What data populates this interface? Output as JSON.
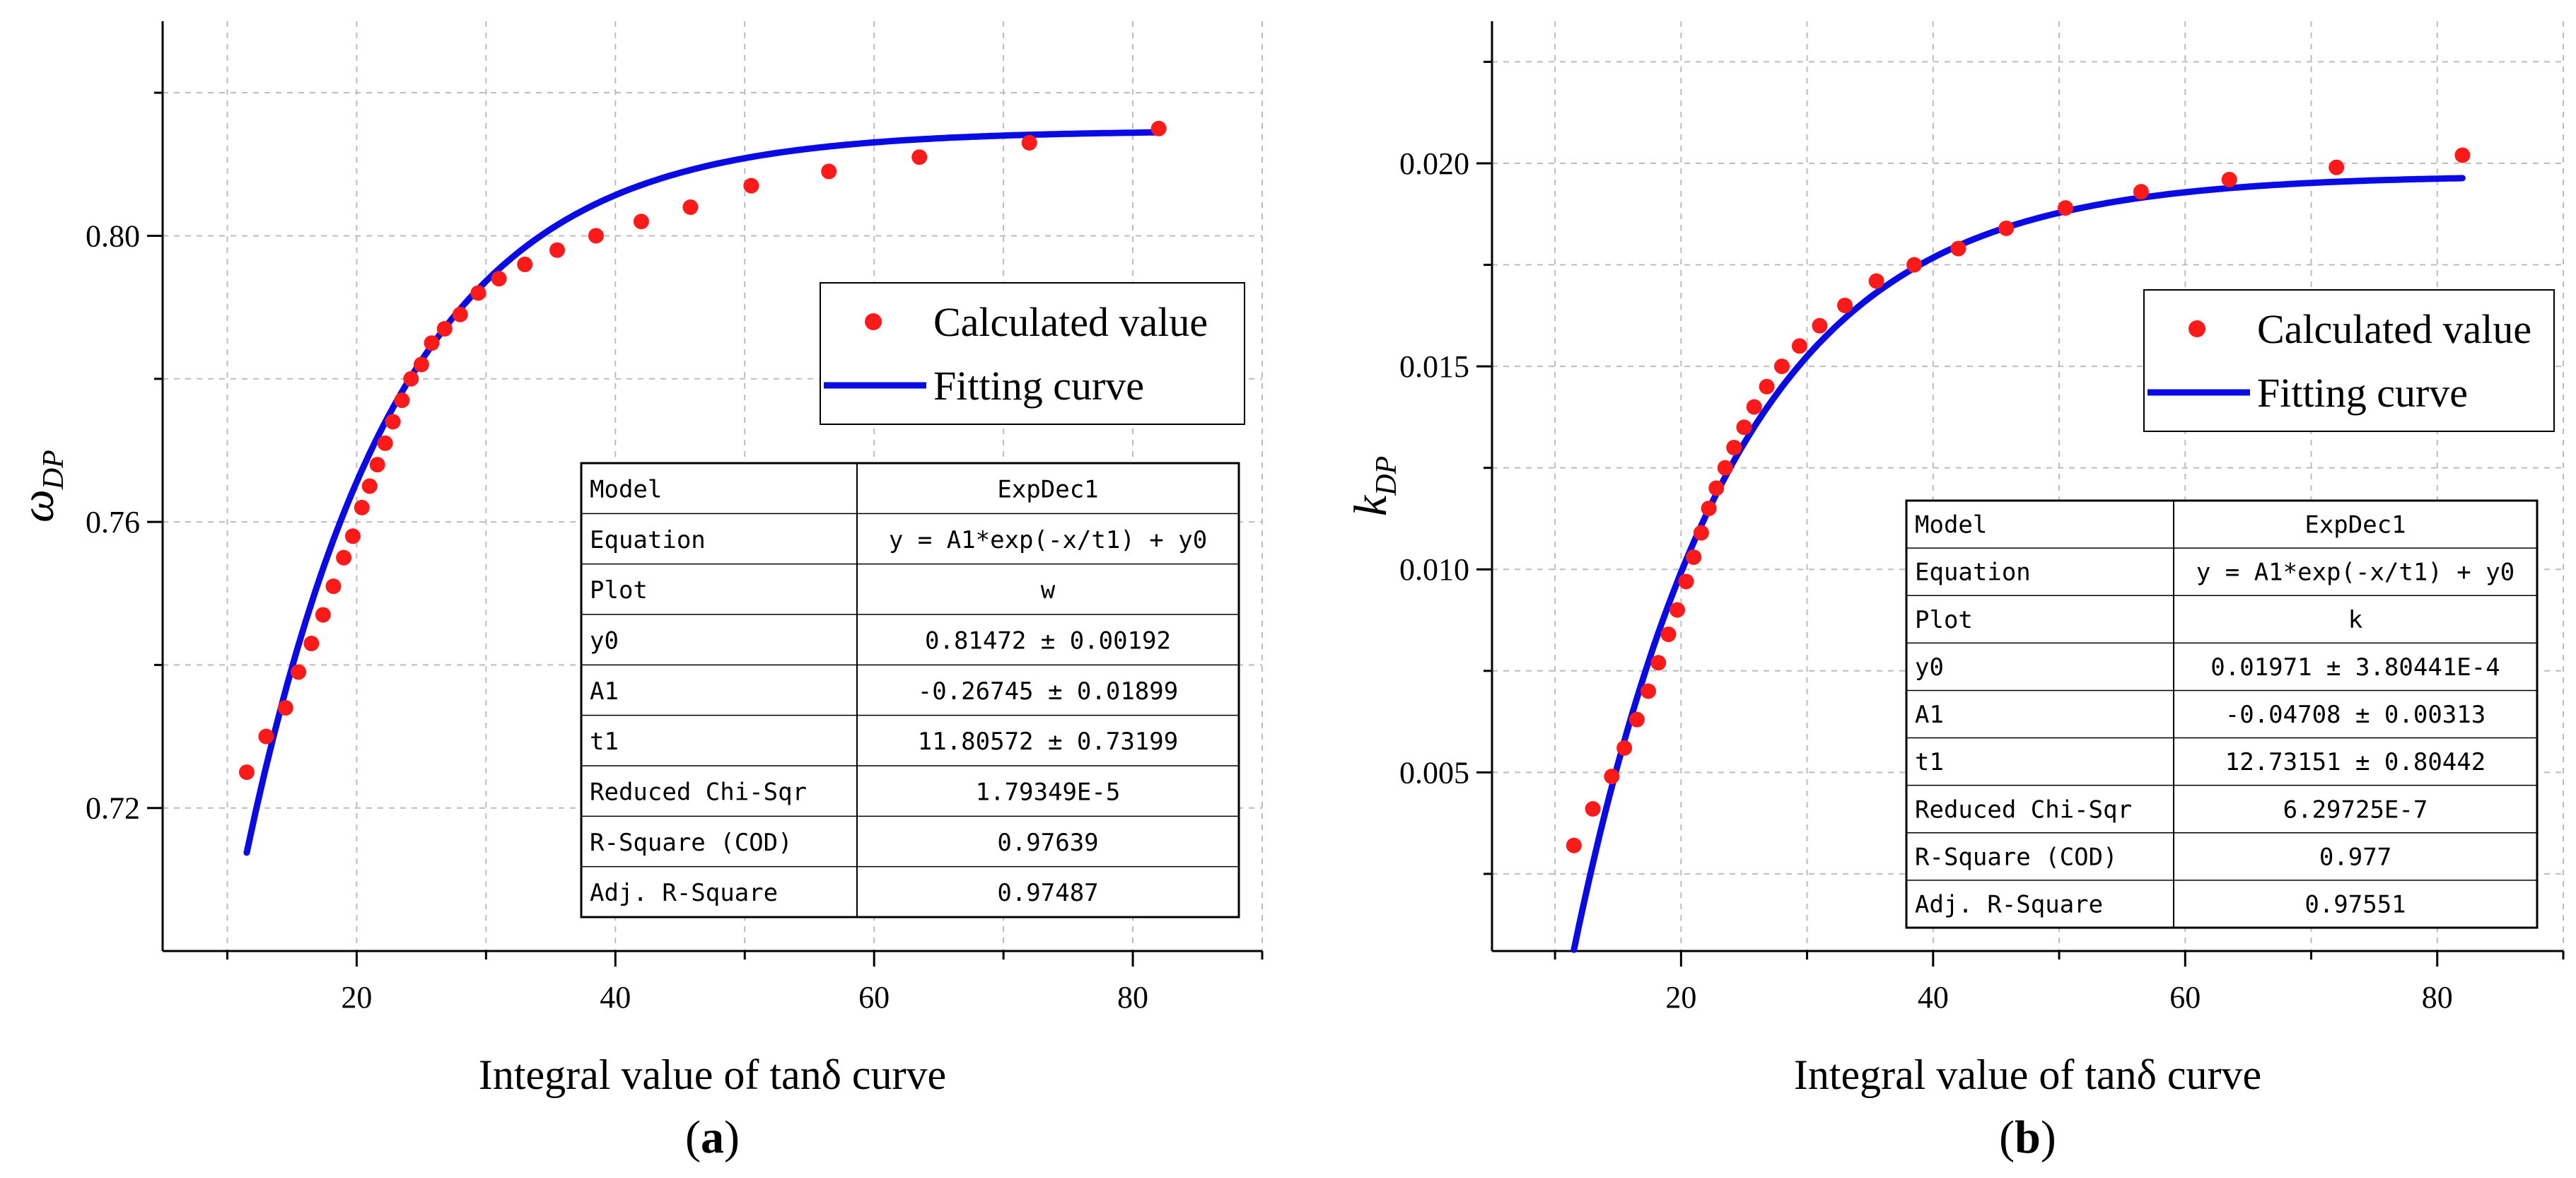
{
  "chart_data": [
    {
      "type": "scatter",
      "panel_label": "(a)",
      "xlabel": "Integral value of tanδ curve",
      "ylabel": "ω",
      "ylabel_sub": "DP",
      "xlim": [
        5,
        90
      ],
      "ylim": [
        0.7,
        0.83
      ],
      "xticks": [
        20,
        40,
        60,
        80
      ],
      "yticks": [
        0.72,
        0.76,
        0.8
      ],
      "ytick_labels": [
        "0.72",
        "0.76",
        "0.80"
      ],
      "grid": true,
      "legend_position": "right",
      "series": [
        {
          "name": "Calculated value",
          "style": "markers",
          "color": "#ff1a1a",
          "x": [
            11.5,
            13,
            14.5,
            15.5,
            16.5,
            17.4,
            18.2,
            19,
            19.7,
            20.4,
            21,
            21.6,
            22.2,
            22.8,
            23.5,
            24.2,
            25,
            25.8,
            26.8,
            28,
            29.4,
            31,
            33,
            35.5,
            38.5,
            42,
            45.8,
            50.5,
            56.5,
            63.5,
            72,
            82
          ],
          "y": [
            0.725,
            0.73,
            0.734,
            0.739,
            0.743,
            0.747,
            0.751,
            0.755,
            0.758,
            0.762,
            0.765,
            0.768,
            0.771,
            0.774,
            0.777,
            0.78,
            0.782,
            0.785,
            0.787,
            0.789,
            0.792,
            0.794,
            0.796,
            0.798,
            0.8,
            0.802,
            0.804,
            0.807,
            0.809,
            0.811,
            0.813,
            0.815
          ]
        },
        {
          "name": "Fitting curve",
          "style": "line",
          "color": "#0a0ae6",
          "model": {
            "y0": 0.81472,
            "A1": -0.26745,
            "t1": 11.80572,
            "x_from": 11.5,
            "x_to": 82
          }
        }
      ],
      "stats_table": [
        [
          "Model",
          "ExpDec1"
        ],
        [
          "Equation",
          "y = A1*exp(-x/t1) + y0"
        ],
        [
          "Plot",
          "w"
        ],
        [
          "y0",
          "0.81472 ± 0.00192"
        ],
        [
          "A1",
          "-0.26745 ± 0.01899"
        ],
        [
          "t1",
          "11.80572 ± 0.73199"
        ],
        [
          "Reduced Chi-Sqr",
          "1.79349E-5"
        ],
        [
          "R-Square (COD)",
          "0.97639"
        ],
        [
          "Adj. R-Square",
          "0.97487"
        ]
      ]
    },
    {
      "type": "scatter",
      "panel_label": "(b)",
      "xlabel": "Integral value of tanδ curve",
      "ylabel": "k",
      "ylabel_sub": "DP",
      "xlim": [
        5,
        90
      ],
      "ylim": [
        0.0006,
        0.0235
      ],
      "xticks": [
        20,
        40,
        60,
        80
      ],
      "yticks": [
        0.005,
        0.01,
        0.015,
        0.02
      ],
      "ytick_labels": [
        "0.005",
        "0.010",
        "0.015",
        "0.020"
      ],
      "grid": true,
      "legend_position": "right",
      "series": [
        {
          "name": "Calculated value",
          "style": "markers",
          "color": "#ff1a1a",
          "x": [
            11.5,
            13,
            14.5,
            15.5,
            16.5,
            17.4,
            18.2,
            19,
            19.7,
            20.4,
            21,
            21.6,
            22.2,
            22.8,
            23.5,
            24.2,
            25,
            25.8,
            26.8,
            28,
            29.4,
            31,
            33,
            35.5,
            38.5,
            42,
            45.8,
            50.5,
            56.5,
            63.5,
            72,
            82
          ],
          "y": [
            0.0032,
            0.0041,
            0.0049,
            0.0056,
            0.0063,
            0.007,
            0.0077,
            0.0084,
            0.009,
            0.0097,
            0.0103,
            0.0109,
            0.0115,
            0.012,
            0.0125,
            0.013,
            0.0135,
            0.014,
            0.0145,
            0.015,
            0.0155,
            0.016,
            0.0165,
            0.0171,
            0.0175,
            0.0179,
            0.0184,
            0.0189,
            0.0193,
            0.0196,
            0.0199,
            0.0202
          ]
        },
        {
          "name": "Fitting curve",
          "style": "line",
          "color": "#0a0ae6",
          "model": {
            "y0": 0.01971,
            "A1": -0.04708,
            "t1": 12.73151,
            "x_from": 11.5,
            "x_to": 82
          }
        }
      ],
      "stats_table": [
        [
          "Model",
          "ExpDec1"
        ],
        [
          "Equation",
          "y = A1*exp(-x/t1) + y0"
        ],
        [
          "Plot",
          "k"
        ],
        [
          "y0",
          "0.01971 ± 3.80441E-4"
        ],
        [
          "A1",
          "-0.04708 ± 0.00313"
        ],
        [
          "t1",
          "12.73151 ± 0.80442"
        ],
        [
          "Reduced Chi-Sqr",
          "6.29725E-7"
        ],
        [
          "R-Square (COD)",
          "0.977"
        ],
        [
          "Adj. R-Square",
          "0.97551"
        ]
      ]
    }
  ]
}
